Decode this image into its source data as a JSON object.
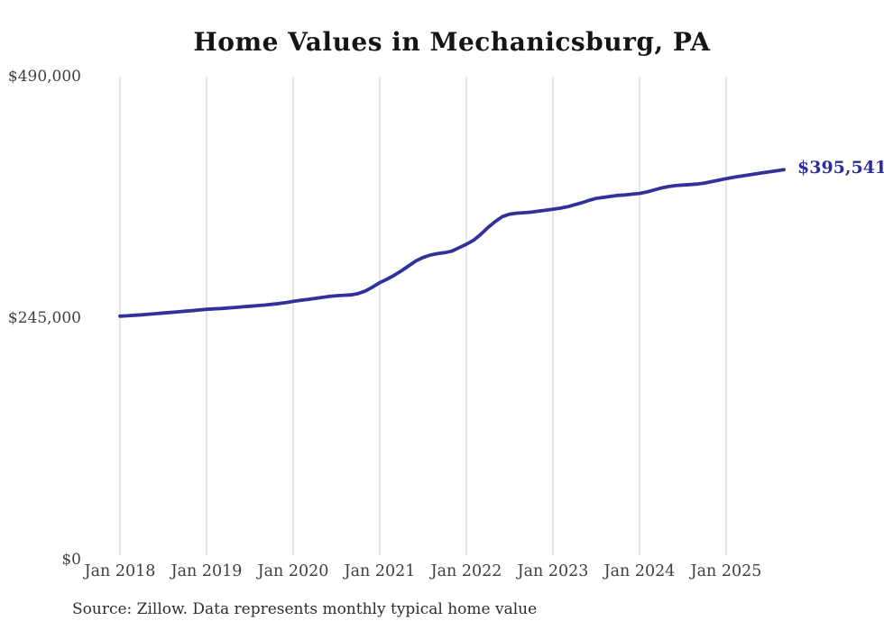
{
  "chart_data": {
    "type": "line",
    "title": "Home Values in Mechanicsburg, PA",
    "source_note": "Source: Zillow. Data represents monthly typical home value",
    "end_label": "$395,541",
    "frequency": "monthly",
    "x_start": "Jan 2018",
    "x_end": "Sep 2025",
    "ylim": [
      0,
      490000
    ],
    "grid": "vertical-only",
    "y_ticks": [
      {
        "label": "$0",
        "value": 0
      },
      {
        "label": "$245,000",
        "value": 245000
      },
      {
        "label": "$490,000",
        "value": 490000
      }
    ],
    "x_ticks": [
      {
        "label": "Jan 2018",
        "month_index": 0
      },
      {
        "label": "Jan 2019",
        "month_index": 12
      },
      {
        "label": "Jan 2020",
        "month_index": 24
      },
      {
        "label": "Jan 2021",
        "month_index": 36
      },
      {
        "label": "Jan 2022",
        "month_index": 48
      },
      {
        "label": "Jan 2023",
        "month_index": 60
      },
      {
        "label": "Jan 2024",
        "month_index": 72
      },
      {
        "label": "Jan 2025",
        "month_index": 84
      }
    ],
    "series": [
      {
        "name": "Typical home value",
        "values": [
          247000,
          247400,
          247900,
          248400,
          249000,
          249600,
          250200,
          250800,
          251400,
          252000,
          252600,
          253300,
          254000,
          254400,
          254800,
          255300,
          255900,
          256500,
          257100,
          257700,
          258300,
          259000,
          259800,
          260800,
          262000,
          263000,
          264000,
          265000,
          266000,
          267000,
          267800,
          268200,
          268600,
          270000,
          272500,
          276500,
          281000,
          284500,
          288500,
          293000,
          298000,
          303000,
          306500,
          309000,
          310500,
          311500,
          313000,
          316500,
          320000,
          324000,
          330000,
          337000,
          343000,
          348000,
          350500,
          351500,
          352000,
          352500,
          353500,
          354500,
          355500,
          356500,
          358000,
          360000,
          362000,
          364500,
          366500,
          367500,
          368500,
          369500,
          370000,
          370800,
          371500,
          373000,
          375000,
          377000,
          378500,
          379500,
          380000,
          380500,
          381000,
          382000,
          383500,
          385000,
          386500,
          387800,
          389000,
          390200,
          391300,
          392400,
          393500,
          394500,
          395541
        ]
      }
    ],
    "colors": {
      "line": "#32319b",
      "end_label": "#2c2c9e",
      "grid": "#cccccc",
      "axis_text": "#3f3f3f",
      "title_text": "#151515",
      "source_text": "#2e2e2e"
    }
  }
}
